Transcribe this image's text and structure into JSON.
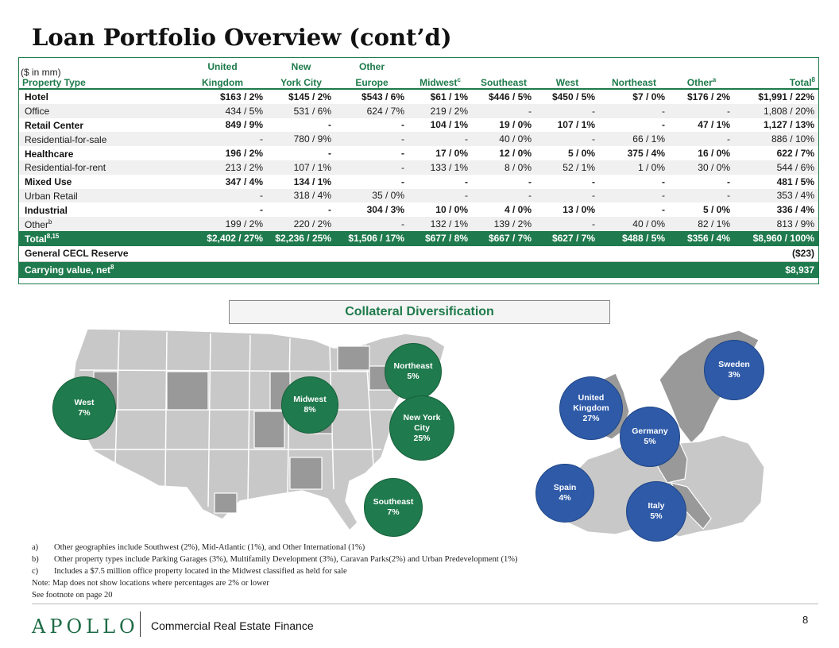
{
  "title": "Loan Portfolio Overview (cont’d)",
  "unit_note": "($ in mm)",
  "table": {
    "columns": [
      {
        "line1": "",
        "line2": "Property Type",
        "sup": ""
      },
      {
        "line1": "United",
        "line2": "Kingdom",
        "sup": ""
      },
      {
        "line1": "New",
        "line2": "York City",
        "sup": ""
      },
      {
        "line1": "Other",
        "line2": "Europe",
        "sup": ""
      },
      {
        "line1": "",
        "line2": "Midwest",
        "sup": "c"
      },
      {
        "line1": "",
        "line2": "Southeast",
        "sup": ""
      },
      {
        "line1": "",
        "line2": "West",
        "sup": ""
      },
      {
        "line1": "",
        "line2": "Northeast",
        "sup": ""
      },
      {
        "line1": "",
        "line2": "Other",
        "sup": "a"
      },
      {
        "line1": "",
        "line2": "Total",
        "sup": "8"
      }
    ],
    "rows": [
      {
        "label": "Hotel",
        "sup": "",
        "cells": [
          "$163  / 2%",
          "$145  / 2%",
          "$543  / 6%",
          "$61  / 1%",
          "$446  / 5%",
          "$450  / 5%",
          "$7  / 0%",
          "$176  / 2%",
          "$1,991  / 22%"
        ]
      },
      {
        "label": "Office",
        "sup": "",
        "cells": [
          "434  / 5%",
          "531  / 6%",
          "624  / 7%",
          "219  / 2%",
          "-",
          "-",
          "-",
          "-",
          "1,808  / 20%"
        ]
      },
      {
        "label": "Retail Center",
        "sup": "",
        "cells": [
          "849  / 9%",
          "-",
          "-",
          "104  / 1%",
          "19  / 0%",
          "107  / 1%",
          "-",
          "47  / 1%",
          "1,127  / 13%"
        ]
      },
      {
        "label": "Residential-for-sale",
        "sup": "",
        "cells": [
          "-",
          "780  / 9%",
          "-",
          "-",
          "40  / 0%",
          "-",
          "66  / 1%",
          "-",
          "886  / 10%"
        ]
      },
      {
        "label": "Healthcare",
        "sup": "",
        "cells": [
          "196  / 2%",
          "-",
          "-",
          "17  / 0%",
          "12  / 0%",
          "5  / 0%",
          "375  / 4%",
          "16  / 0%",
          "622  / 7%"
        ]
      },
      {
        "label": "Residential-for-rent",
        "sup": "",
        "cells": [
          "213  / 2%",
          "107  / 1%",
          "-",
          "133  / 1%",
          "8  / 0%",
          "52  / 1%",
          "1  / 0%",
          "30  / 0%",
          "544  / 6%"
        ]
      },
      {
        "label": "Mixed Use",
        "sup": "",
        "cells": [
          "347  / 4%",
          "134  / 1%",
          "-",
          "-",
          "-",
          "-",
          "-",
          "-",
          "481  / 5%"
        ]
      },
      {
        "label": "Urban Retail",
        "sup": "",
        "cells": [
          "-",
          "318  / 4%",
          "35  / 0%",
          "-",
          "-",
          "-",
          "-",
          "-",
          "353  / 4%"
        ]
      },
      {
        "label": "Industrial",
        "sup": "",
        "cells": [
          "-",
          "-",
          "304  / 3%",
          "10  / 0%",
          "4  / 0%",
          "13  / 0%",
          "-",
          "5  / 0%",
          "336  / 4%"
        ]
      },
      {
        "label": "Other",
        "sup": "b",
        "cells": [
          "199  / 2%",
          "220  / 2%",
          "-",
          "132  / 1%",
          "139  / 2%",
          "-",
          "40  / 0%",
          "82  / 1%",
          "813  / 9%"
        ]
      }
    ],
    "total": {
      "label": "Total",
      "sup": "8,15",
      "cells": [
        "$2,402 / 27%",
        "$2,236 / 25%",
        "$1,506 / 17%",
        "$677 / 8%",
        "$667 / 7%",
        "$627 / 7%",
        "$488 / 5%",
        "$356 / 4%",
        "$8,960 / 100%"
      ]
    },
    "cecl": {
      "label": "General CECL Reserve",
      "value": "($23)"
    },
    "carrying": {
      "label": "Carrying value, net",
      "sup": "8",
      "value": "$8,937"
    }
  },
  "collateral_title": "Collateral Diversification",
  "us_bubbles": [
    {
      "name": "West",
      "pct": "7%"
    },
    {
      "name": "Midwest",
      "pct": "8%"
    },
    {
      "name": "Northeast",
      "pct": "5%"
    },
    {
      "name": "New York City",
      "pct": "25%"
    },
    {
      "name": "Southeast",
      "pct": "7%"
    }
  ],
  "eu_bubbles": [
    {
      "name": "Sweden",
      "pct": "3%"
    },
    {
      "name": "United Kingdom",
      "pct": "27%"
    },
    {
      "name": "Germany",
      "pct": "5%"
    },
    {
      "name": "Spain",
      "pct": "4%"
    },
    {
      "name": "Italy",
      "pct": "5%"
    }
  ],
  "footnotes": [
    {
      "marker": "a)",
      "text": "Other geographies include Southwest (2%), Mid-Atlantic (1%), and Other International (1%)"
    },
    {
      "marker": "b)",
      "text": "Other property types include Parking Garages (3%), Multifamily Development (3%), Caravan Parks(2%) and Urban Predevelopment (1%)"
    },
    {
      "marker": "c)",
      "text": "Includes a $7.5 million office property located in the Midwest classified as held for sale"
    }
  ],
  "notes": [
    "Note: Map does not show locations where percentages are 2% or lower",
    "See footnote on page 20"
  ],
  "footer": {
    "logo": "APOLLO",
    "division": "Commercial Real Estate Finance",
    "page": "8"
  },
  "colors": {
    "green": "#1f7a4d",
    "blue": "#2e5aa8",
    "map_gray": "#c8c8c8",
    "map_dark": "#999999"
  }
}
